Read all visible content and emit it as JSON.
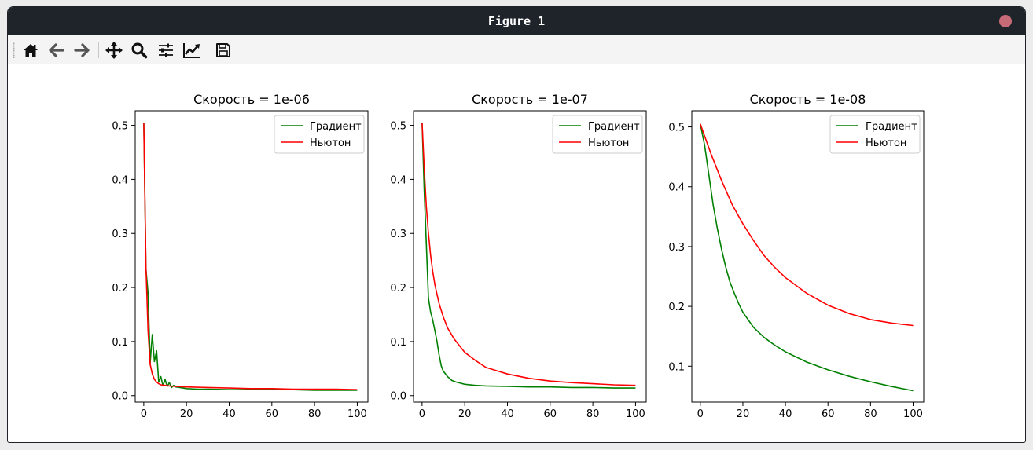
{
  "window": {
    "title": "Figure 1"
  },
  "toolbar": {
    "items": [
      {
        "name": "home-icon",
        "label": "Home"
      },
      {
        "name": "back-icon",
        "label": "Back"
      },
      {
        "name": "forward-icon",
        "label": "Forward"
      },
      {
        "name": "pan-icon",
        "label": "Pan"
      },
      {
        "name": "zoom-icon",
        "label": "Zoom"
      },
      {
        "name": "subplots-icon",
        "label": "Subplots"
      },
      {
        "name": "edit-curves-icon",
        "label": "Customize"
      },
      {
        "name": "save-icon",
        "label": "Save"
      }
    ]
  },
  "colors": {
    "gradient": "#008000",
    "newton": "#ff0000"
  },
  "chart_data": [
    {
      "type": "line",
      "title": "Скорость = 1e-06",
      "xlim": [
        -4,
        105
      ],
      "ylim": [
        -0.012,
        0.527
      ],
      "xticks": [
        0,
        20,
        40,
        60,
        80,
        100
      ],
      "yticks": [
        0.0,
        0.1,
        0.2,
        0.3,
        0.4,
        0.5
      ],
      "ytick_labels": [
        "0.0",
        "0.1",
        "0.2",
        "0.3",
        "0.4",
        "0.5"
      ],
      "legend": "upper right",
      "series": [
        {
          "name": "Градиент",
          "color": "#008000",
          "x": [
            0,
            1,
            2,
            3,
            4,
            5,
            6,
            7,
            8,
            9,
            10,
            11,
            12,
            13,
            14,
            15,
            17,
            20,
            25,
            30,
            40,
            50,
            60,
            70,
            80,
            90,
            100
          ],
          "y": [
            0.505,
            0.235,
            0.19,
            0.06,
            0.113,
            0.063,
            0.083,
            0.025,
            0.035,
            0.018,
            0.03,
            0.017,
            0.024,
            0.015,
            0.019,
            0.016,
            0.015,
            0.013,
            0.012,
            0.012,
            0.011,
            0.011,
            0.011,
            0.011,
            0.01,
            0.01,
            0.01
          ]
        },
        {
          "name": "Ньютон",
          "color": "#ff0000",
          "x": [
            0,
            1,
            2,
            3,
            4,
            5,
            6,
            7,
            8,
            10,
            12,
            15,
            20,
            30,
            40,
            50,
            60,
            70,
            80,
            90,
            100
          ],
          "y": [
            0.505,
            0.24,
            0.12,
            0.058,
            0.04,
            0.03,
            0.025,
            0.022,
            0.02,
            0.019,
            0.018,
            0.017,
            0.016,
            0.015,
            0.014,
            0.013,
            0.013,
            0.012,
            0.012,
            0.012,
            0.011
          ]
        }
      ]
    },
    {
      "type": "line",
      "title": "Скорость = 1e-07",
      "xlim": [
        -4,
        105
      ],
      "ylim": [
        -0.012,
        0.527
      ],
      "xticks": [
        0,
        20,
        40,
        60,
        80,
        100
      ],
      "yticks": [
        0.0,
        0.1,
        0.2,
        0.3,
        0.4,
        0.5
      ],
      "ytick_labels": [
        "0.0",
        "0.1",
        "0.2",
        "0.3",
        "0.4",
        "0.5"
      ],
      "legend": "upper right",
      "series": [
        {
          "name": "Градиент",
          "color": "#008000",
          "x": [
            0,
            1,
            2,
            3,
            4,
            5,
            6,
            7,
            8,
            9,
            10,
            12,
            14,
            16,
            18,
            20,
            25,
            30,
            40,
            50,
            60,
            70,
            80,
            90,
            100
          ],
          "y": [
            0.505,
            0.38,
            0.28,
            0.18,
            0.155,
            0.14,
            0.12,
            0.1,
            0.075,
            0.055,
            0.045,
            0.035,
            0.028,
            0.025,
            0.023,
            0.021,
            0.019,
            0.018,
            0.017,
            0.016,
            0.016,
            0.015,
            0.015,
            0.014,
            0.014
          ]
        },
        {
          "name": "Ньютон",
          "color": "#ff0000",
          "x": [
            0,
            1,
            2,
            3,
            4,
            5,
            6,
            8,
            10,
            12,
            15,
            20,
            25,
            30,
            40,
            50,
            60,
            70,
            80,
            90,
            100
          ],
          "y": [
            0.505,
            0.42,
            0.35,
            0.3,
            0.26,
            0.23,
            0.205,
            0.17,
            0.145,
            0.125,
            0.105,
            0.08,
            0.065,
            0.052,
            0.04,
            0.032,
            0.027,
            0.024,
            0.022,
            0.02,
            0.019
          ]
        }
      ]
    },
    {
      "type": "line",
      "title": "Скорость = 1e-08",
      "xlim": [
        -4,
        105
      ],
      "ylim": [
        0.04,
        0.527
      ],
      "xticks": [
        0,
        20,
        40,
        60,
        80,
        100
      ],
      "yticks": [
        0.1,
        0.2,
        0.3,
        0.4,
        0.5
      ],
      "ytick_labels": [
        "0.1",
        "0.2",
        "0.3",
        "0.4",
        "0.5"
      ],
      "legend": "upper right",
      "series": [
        {
          "name": "Градиент",
          "color": "#008000",
          "x": [
            0,
            2,
            4,
            6,
            8,
            10,
            12,
            14,
            16,
            18,
            20,
            25,
            30,
            35,
            40,
            50,
            60,
            70,
            80,
            90,
            100
          ],
          "y": [
            0.505,
            0.47,
            0.42,
            0.37,
            0.33,
            0.295,
            0.265,
            0.24,
            0.222,
            0.205,
            0.19,
            0.165,
            0.148,
            0.135,
            0.124,
            0.107,
            0.094,
            0.083,
            0.074,
            0.066,
            0.059
          ]
        },
        {
          "name": "Ньютон",
          "color": "#ff0000",
          "x": [
            0,
            5,
            10,
            15,
            20,
            25,
            30,
            35,
            40,
            50,
            60,
            70,
            80,
            90,
            100
          ],
          "y": [
            0.505,
            0.455,
            0.41,
            0.37,
            0.338,
            0.31,
            0.285,
            0.265,
            0.248,
            0.222,
            0.202,
            0.188,
            0.178,
            0.172,
            0.168
          ]
        }
      ]
    }
  ]
}
